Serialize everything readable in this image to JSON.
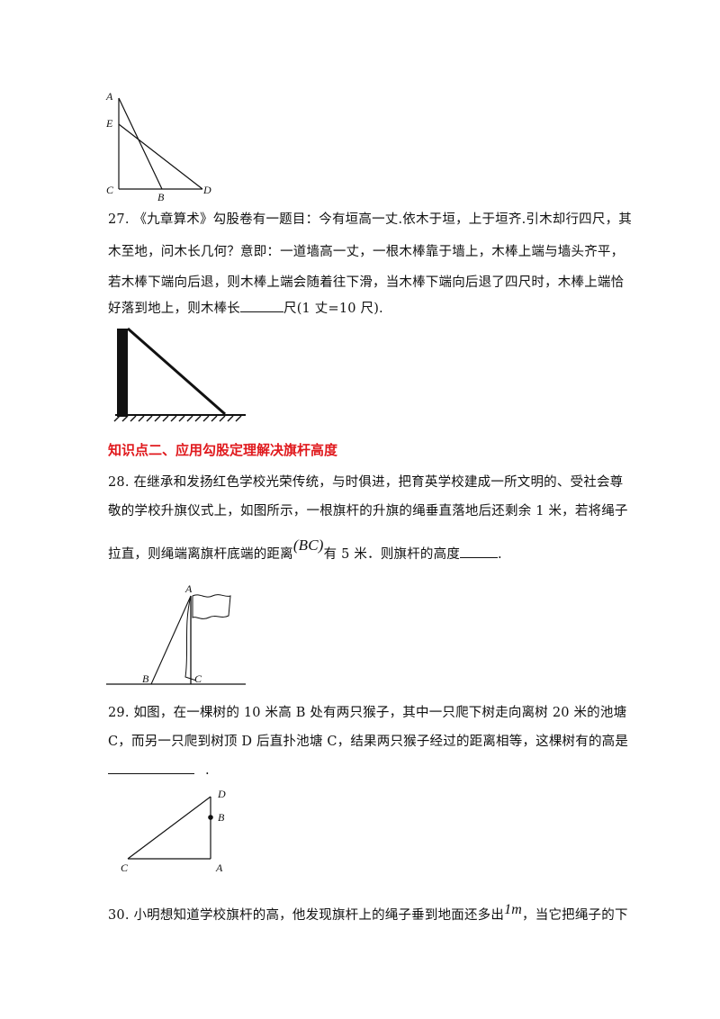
{
  "fig26": {
    "labels": {
      "A": "A",
      "E": "E",
      "C": "C",
      "B": "B",
      "D": "D"
    }
  },
  "q27": {
    "line1": "27. 《九章算术》勾股卷有一题目：今有垣高一丈.依木于垣，上于垣齐.引木却行四尺，其",
    "line2": "木至地，问木长几何？意即：一道墙高一丈，一根木棒靠于墙上，木棒上端与墙头齐平，",
    "line3": "若木棒下端向后退，则木棒上端会随着往下滑，当木棒下端向后退了四尺时，木棒上端恰",
    "line4_pre": "好落到地上，则木棒长",
    "line4_post": "尺(1 丈=10 尺)."
  },
  "section2": {
    "title": "知识点二、应用勾股定理解决旗杆高度"
  },
  "q28": {
    "line1": "28. 在继承和发扬红色学校光荣传统，与时俱进，把育英学校建成一所文明的、受社会尊",
    "line2": "敬的学校升旗仪式上，如图所示，一根旗杆的升旗的绳垂直落地后还剩余 1 米，若将绳子",
    "line3_pre": "拉直，则绳端离旗杆底端的距离",
    "math": "(BC)",
    "line3_mid": "有 5 米．则旗杆的高度",
    "line3_post": ".",
    "fig": {
      "A": "A",
      "B": "B",
      "C": "C"
    }
  },
  "q29": {
    "line1": "29. 如图，在一棵树的 10 米高 B 处有两只猴子，其中一只爬下树走向离树 20 米的池塘",
    "line2": "C，而另一只爬到树顶 D 后直扑池塘 C，结果两只猴子经过的距离相等，这棵树有的高是",
    "line3_post": ".",
    "fig": {
      "D": "D",
      "B": "B",
      "C": "C",
      "A": "A"
    }
  },
  "q30": {
    "line1_pre": "30. 小明想知道学校旗杆的高，他发现旗杆上的绳子垂到地面还多出",
    "math": "1m",
    "line1_post": "，当它把绳子的下"
  }
}
